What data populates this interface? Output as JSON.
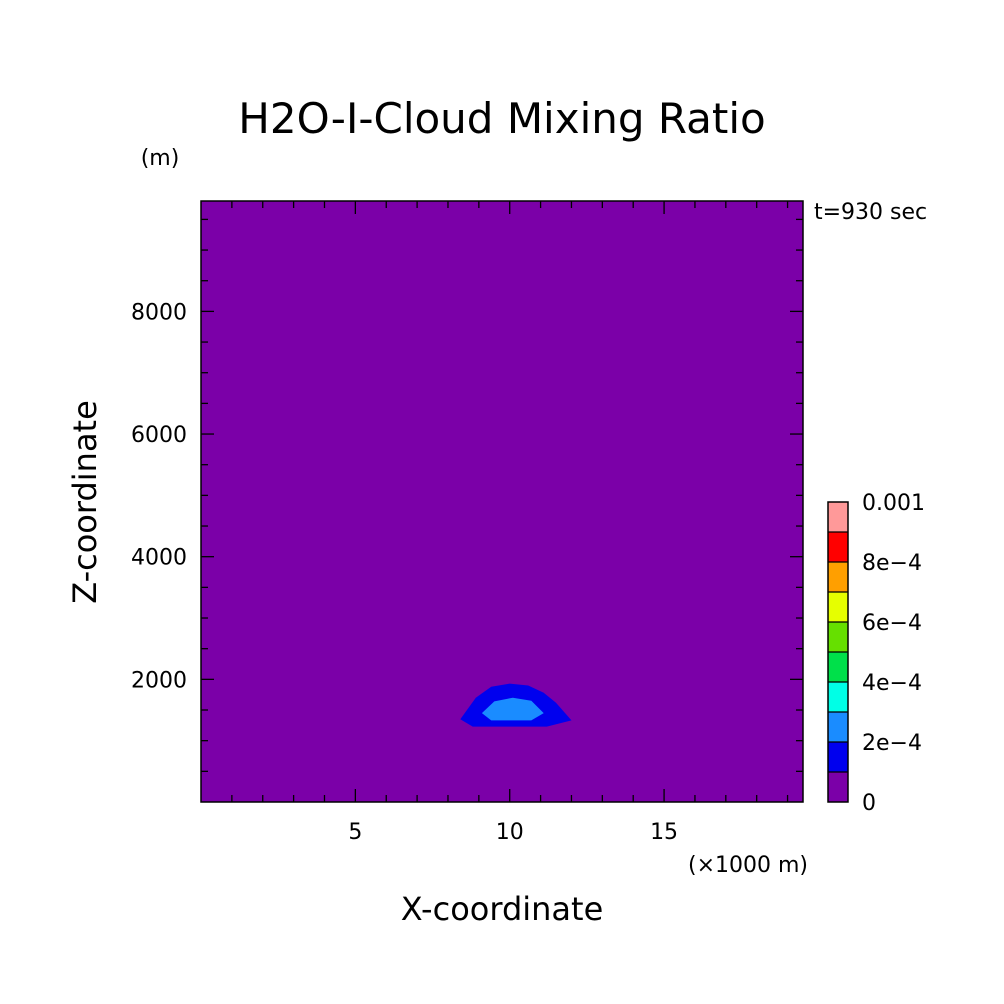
{
  "chart_data": {
    "type": "heatmap",
    "title": "H2O-I-Cloud Mixing Ratio",
    "xlabel": "X-coordinate",
    "ylabel": "Z-coordinate",
    "x_unit": "(×1000 m)",
    "y_unit": "(m)",
    "time_label": "t=930 sec",
    "xlim": [
      0,
      19.5
    ],
    "ylim": [
      0,
      9800
    ],
    "x_ticks": [
      5,
      10,
      15
    ],
    "x_tick_labels": [
      "5",
      "10",
      "15"
    ],
    "y_ticks": [
      2000,
      4000,
      6000,
      8000
    ],
    "y_tick_labels": [
      "2000",
      "4000",
      "6000",
      "8000"
    ],
    "background_value": 0,
    "colorbar": {
      "levels": [
        0,
        0.0001,
        0.0002,
        0.0003,
        0.0004,
        0.0005,
        0.0006,
        0.0007,
        0.0008,
        0.0009,
        0.001
      ],
      "colors": [
        "#7b00a8",
        "#0000ee",
        "#1a8cff",
        "#00ffe6",
        "#00e04a",
        "#66e000",
        "#e6ff00",
        "#ff9f00",
        "#ff0000",
        "#ff9999"
      ],
      "tick_values": [
        0,
        0.0002,
        0.0004,
        0.0006,
        0.0008,
        0.001
      ],
      "tick_labels": [
        "0",
        "2e−4",
        "4e−4",
        "6e−4",
        "8e−4",
        "0.001"
      ]
    },
    "contours": [
      {
        "level_index": 1,
        "x": [
          8.4,
          8.9,
          9.4,
          10.0,
          10.6,
          11.1,
          11.5,
          12.0,
          11.2,
          8.8
        ],
        "y": [
          1350,
          1700,
          1880,
          1930,
          1900,
          1780,
          1620,
          1330,
          1230,
          1230
        ]
      },
      {
        "level_index": 2,
        "x": [
          9.1,
          9.5,
          10.1,
          10.7,
          11.1,
          10.7,
          9.4
        ],
        "y": [
          1450,
          1640,
          1700,
          1650,
          1450,
          1330,
          1330
        ]
      }
    ]
  }
}
